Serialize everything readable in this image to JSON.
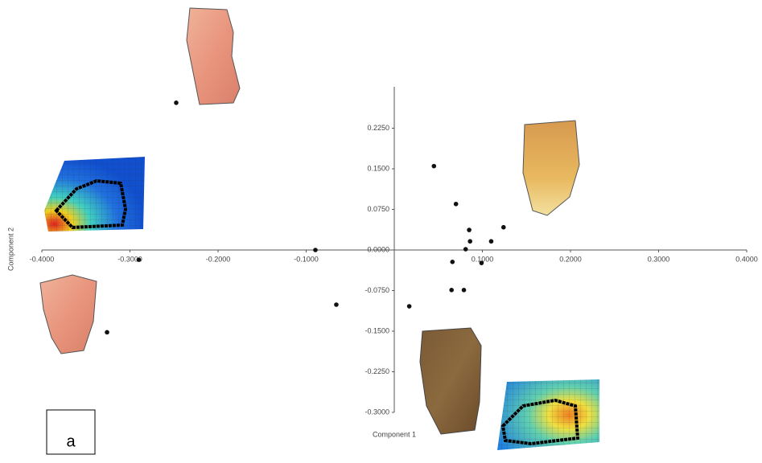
{
  "chart_data": {
    "type": "scatter",
    "x_label": "Component 1",
    "y_label": "Component 2",
    "annotation": "a",
    "color": "#111111",
    "x": [
      -0.2475,
      -0.29,
      -0.0895,
      -0.0658,
      -0.326,
      0.017,
      0.045,
      0.07,
      0.085,
      0.086,
      0.081,
      0.066,
      0.099,
      0.11,
      0.124,
      0.065,
      0.079
    ],
    "values": [
      0.272,
      -0.018,
      0,
      -0.101,
      -0.152,
      -0.104,
      0.155,
      0.085,
      0.037,
      0.016,
      0.0015,
      -0.022,
      -0.024,
      0.016,
      0.042,
      -0.074,
      -0.074
    ],
    "xlim": [
      -0.4,
      0.4
    ],
    "ylim": [
      -0.3,
      0.3
    ],
    "xticks": [
      {
        "value": -0.4,
        "label": "-0.4000"
      },
      {
        "value": -0.3,
        "label": "-0.3000"
      },
      {
        "value": -0.2,
        "label": "-0.2000"
      },
      {
        "value": -0.1,
        "label": "-0.1000"
      },
      {
        "value": 0.1,
        "label": "0.1000"
      },
      {
        "value": 0.2,
        "label": "0.2000"
      },
      {
        "value": 0.3,
        "label": "0.3000"
      },
      {
        "value": 0.4,
        "label": "0.4000"
      }
    ],
    "yticks": [
      {
        "value": -0.3,
        "label": "-0.3000"
      },
      {
        "value": -0.225,
        "label": "-0.2250"
      },
      {
        "value": -0.15,
        "label": "-0.1500"
      },
      {
        "value": -0.075,
        "label": "-0.0750"
      },
      {
        "value": 0,
        "label": "0.0000"
      },
      {
        "value": 0.075,
        "label": "0.0750"
      },
      {
        "value": 0.15,
        "label": "0.1500"
      },
      {
        "value": 0.225,
        "label": "0.2250"
      }
    ]
  }
}
